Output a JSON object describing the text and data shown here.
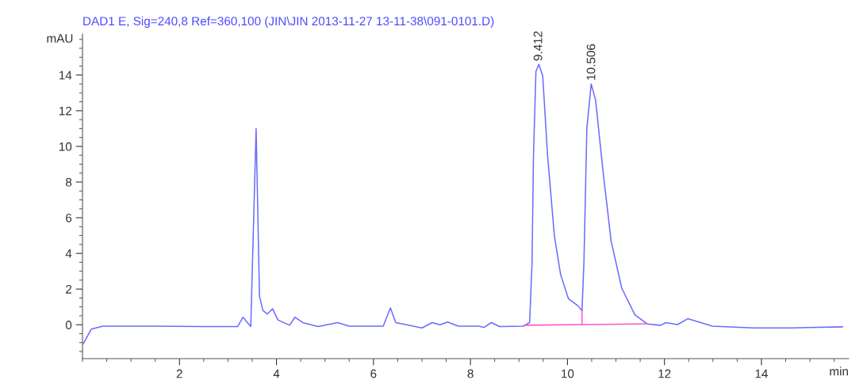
{
  "chart_data": {
    "type": "line",
    "title": "DAD1 E, Sig=240,8 Ref=360,100 (JIN\\JIN 2013-11-27 13-11-38\\091-0101.D)",
    "ylabel": "mAU",
    "xlabel": "min",
    "xlim": [
      0,
      15.8
    ],
    "ylim": [
      -1.9,
      16.3
    ],
    "xticks": [
      2,
      4,
      6,
      8,
      10,
      12,
      14
    ],
    "yticks": [
      0,
      2,
      4,
      6,
      8,
      10,
      12,
      14
    ],
    "grid": false,
    "legend": false,
    "marker": "none",
    "line_style": "solid",
    "series": [
      {
        "color": "#6b6bff",
        "x": [
          0.02,
          0.18,
          0.42,
          1.5,
          2.5,
          3.2,
          3.31,
          3.47,
          3.58,
          3.65,
          3.72,
          3.81,
          3.92,
          4.03,
          4.27,
          4.38,
          4.54,
          4.86,
          5.26,
          5.5,
          6.2,
          6.35,
          6.46,
          7.0,
          7.21,
          7.37,
          7.53,
          7.75,
          8.17,
          8.28,
          8.43,
          8.6,
          9.09,
          9.22,
          9.27,
          9.3,
          9.35,
          9.41,
          9.49,
          9.59,
          9.73,
          9.86,
          10.02,
          10.21,
          10.3,
          10.34,
          10.4,
          10.49,
          10.58,
          10.74,
          10.9,
          11.12,
          11.39,
          11.65,
          11.92,
          12.03,
          12.27,
          12.48,
          12.99,
          13.85,
          14.6,
          15.67
        ],
        "values": [
          -1.05,
          -0.25,
          -0.08,
          -0.08,
          -0.1,
          -0.1,
          0.42,
          -0.1,
          11.0,
          1.6,
          0.8,
          0.6,
          0.89,
          0.27,
          -0.03,
          0.42,
          0.12,
          -0.1,
          0.12,
          -0.08,
          -0.08,
          0.94,
          0.12,
          -0.18,
          0.12,
          0.0,
          0.15,
          -0.08,
          -0.08,
          -0.15,
          0.12,
          -0.1,
          -0.08,
          0.12,
          3.5,
          9.5,
          14.2,
          14.6,
          13.96,
          9.5,
          5.0,
          2.8,
          1.46,
          1.08,
          0.79,
          3.5,
          11.0,
          13.5,
          12.6,
          8.45,
          4.7,
          2.05,
          0.56,
          0.04,
          -0.03,
          0.12,
          0.01,
          0.34,
          -0.08,
          -0.18,
          -0.18,
          -0.12
        ]
      },
      {
        "color": "#ff55cc",
        "x": [
          9.11,
          10.3,
          11.65
        ],
        "values": [
          -0.03,
          0.01,
          0.05
        ]
      },
      {
        "color": "#ff55cc",
        "x": [
          10.3,
          10.3
        ],
        "values": [
          0.01,
          0.79
        ]
      }
    ],
    "annotations": [
      {
        "text": "9.412",
        "x": 9.412,
        "y": 14.6
      },
      {
        "text": "10.506",
        "x": 10.506,
        "y": 13.5
      }
    ]
  }
}
